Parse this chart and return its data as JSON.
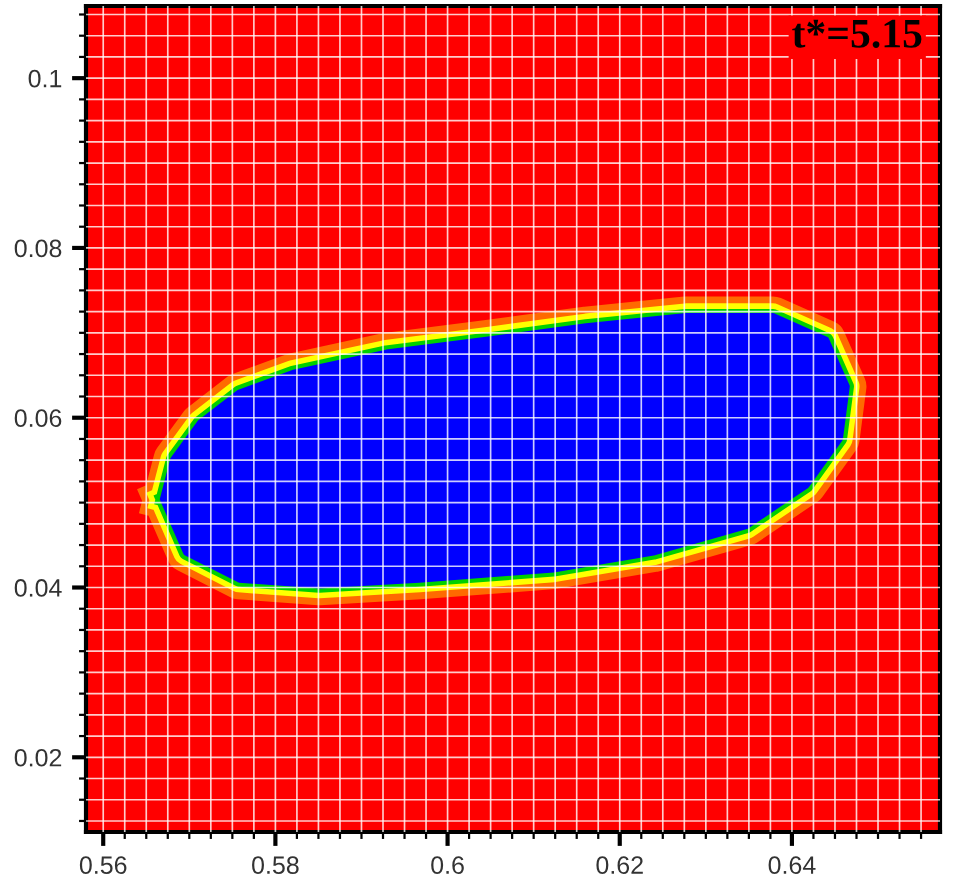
{
  "chart_data": {
    "type": "area",
    "xlim": [
      0.558,
      0.6572
    ],
    "ylim": [
      0.0112,
      0.1085
    ],
    "xticks": [
      {
        "value": 0.56,
        "label": "0.56"
      },
      {
        "value": 0.58,
        "label": "0.58"
      },
      {
        "value": 0.6,
        "label": "0.6"
      },
      {
        "value": 0.62,
        "label": "0.62"
      },
      {
        "value": 0.64,
        "label": "0.64"
      }
    ],
    "yticks": [
      {
        "value": 0.02,
        "label": "0.02"
      },
      {
        "value": 0.04,
        "label": "0.04"
      },
      {
        "value": 0.06,
        "label": "0.06"
      },
      {
        "value": 0.08,
        "label": "0.08"
      },
      {
        "value": 0.1,
        "label": "0.1"
      }
    ],
    "grid": true,
    "marker": "none",
    "annotations": [
      "t*=5.15"
    ],
    "series": [
      {
        "color": "#0000ff",
        "x": [
          0.5669,
          0.5681,
          0.5712,
          0.5758,
          0.582,
          0.5929,
          0.6045,
          0.6161,
          0.6277,
          0.6378,
          0.644,
          0.6464,
          0.6456,
          0.6417,
          0.6347,
          0.6239,
          0.6123,
          0.5967,
          0.5851,
          0.5758,
          0.5696,
          0.5669
        ],
        "values": [
          0.0504,
          0.0551,
          0.0594,
          0.063,
          0.0653,
          0.0677,
          0.0692,
          0.0708,
          0.072,
          0.072,
          0.0692,
          0.0637,
          0.0575,
          0.052,
          0.0472,
          0.0441,
          0.0421,
          0.0409,
          0.0402,
          0.0409,
          0.0441,
          0.0504
        ]
      }
    ]
  }
}
